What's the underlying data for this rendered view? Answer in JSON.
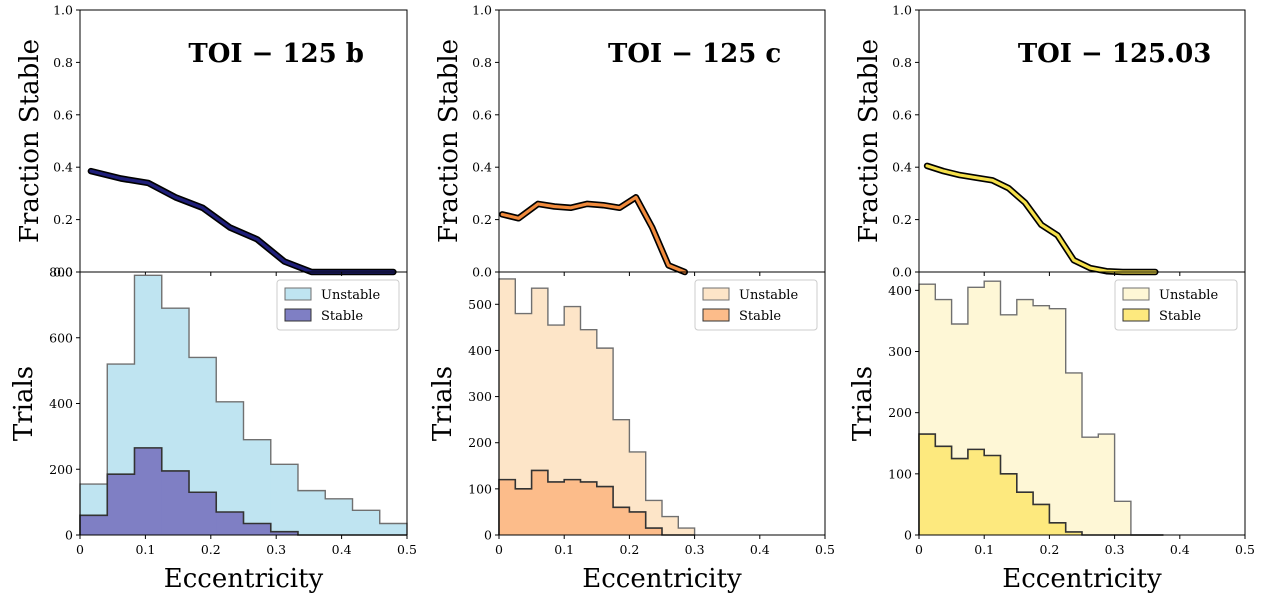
{
  "chart_data": [
    {
      "type": "line",
      "title": "TOI − 125 b",
      "ylabel": "Fraction Stable",
      "ylim": [
        0.0,
        1.0
      ],
      "xlim": [
        0.0,
        0.5
      ],
      "yticks": [
        "0.0",
        "0.2",
        "0.4",
        "0.6",
        "0.8",
        "1.0"
      ],
      "color": "#1f1f7a",
      "x": [
        0.0167,
        0.0625,
        0.1042,
        0.1458,
        0.1875,
        0.2292,
        0.2708,
        0.3125,
        0.3542,
        0.3958,
        0.4375,
        0.4792
      ],
      "y": [
        0.385,
        0.357,
        0.34,
        0.285,
        0.245,
        0.17,
        0.125,
        0.04,
        0.0,
        0.0,
        0.0,
        0.0
      ]
    },
    {
      "type": "histogram",
      "ylabel": "Trials",
      "xlabel": "Eccentricity",
      "ylim": [
        0,
        800
      ],
      "xlim": [
        0.0,
        0.5
      ],
      "xticks": [
        "0",
        "0.1",
        "0.2",
        "0.3",
        "0.4",
        "0.5"
      ],
      "yticks": [
        "0",
        "200",
        "400",
        "600",
        "800"
      ],
      "legend": {
        "position": "top-right",
        "entries": [
          "Unstable",
          "Stable"
        ]
      },
      "bin_edges": [
        0.0,
        0.0417,
        0.0833,
        0.125,
        0.1667,
        0.2083,
        0.25,
        0.2917,
        0.3333,
        0.375,
        0.4167,
        0.4583,
        0.5
      ],
      "series": [
        {
          "name": "Unstable",
          "color": "#bfe4f1",
          "values": [
            155,
            520,
            790,
            690,
            540,
            405,
            290,
            215,
            135,
            110,
            75,
            35
          ]
        },
        {
          "name": "Stable",
          "color": "#7f7fc4",
          "values": [
            60,
            185,
            265,
            195,
            130,
            70,
            35,
            10,
            0,
            0,
            0,
            0
          ]
        }
      ]
    },
    {
      "type": "line",
      "title": "TOI − 125 c",
      "ylabel": "Fraction Stable",
      "ylim": [
        0.0,
        1.0
      ],
      "xlim": [
        0.0,
        0.5
      ],
      "yticks": [
        "0.0",
        "0.2",
        "0.4",
        "0.6",
        "0.8",
        "1.0"
      ],
      "color": "#f08a3c",
      "x": [
        0.005,
        0.03,
        0.06,
        0.085,
        0.11,
        0.135,
        0.16,
        0.185,
        0.21,
        0.235,
        0.26,
        0.285
      ],
      "y": [
        0.22,
        0.205,
        0.26,
        0.25,
        0.245,
        0.26,
        0.255,
        0.245,
        0.285,
        0.17,
        0.025,
        0.0
      ]
    },
    {
      "type": "histogram",
      "ylabel": "Trials",
      "xlabel": "Eccentricity",
      "ylim": [
        0,
        570
      ],
      "xlim": [
        0.0,
        0.5
      ],
      "xticks": [
        "0",
        "0.1",
        "0.2",
        "0.3",
        "0.4",
        "0.5"
      ],
      "yticks": [
        "0",
        "100",
        "200",
        "300",
        "400",
        "500"
      ],
      "legend": {
        "position": "top-right",
        "entries": [
          "Unstable",
          "Stable"
        ]
      },
      "bin_edges": [
        0.0,
        0.025,
        0.05,
        0.075,
        0.1,
        0.125,
        0.15,
        0.175,
        0.2,
        0.225,
        0.25,
        0.275,
        0.3
      ],
      "series": [
        {
          "name": "Unstable",
          "color": "#fde5c8",
          "values": [
            555,
            480,
            535,
            455,
            495,
            445,
            405,
            250,
            180,
            75,
            40,
            15
          ]
        },
        {
          "name": "Stable",
          "color": "#fcbc8a",
          "values": [
            120,
            100,
            140,
            115,
            120,
            115,
            105,
            60,
            50,
            15,
            0,
            0
          ]
        }
      ]
    },
    {
      "type": "line",
      "title": "TOI − 125.03",
      "ylabel": "Fraction Stable",
      "ylim": [
        0.0,
        1.0
      ],
      "xlim": [
        0.0,
        0.5
      ],
      "yticks": [
        "0.0",
        "0.2",
        "0.4",
        "0.6",
        "0.8",
        "1.0"
      ],
      "color": "#f5e04a",
      "x": [
        0.0125,
        0.0375,
        0.0625,
        0.0875,
        0.1125,
        0.1375,
        0.1625,
        0.1875,
        0.2125,
        0.2375,
        0.2625,
        0.2875,
        0.3125,
        0.3375,
        0.3625
      ],
      "y": [
        0.405,
        0.385,
        0.37,
        0.36,
        0.35,
        0.32,
        0.265,
        0.18,
        0.14,
        0.045,
        0.015,
        0.003,
        0.0,
        0.0,
        0.0
      ]
    },
    {
      "type": "histogram",
      "ylabel": "Trials",
      "xlabel": "Eccentricity",
      "ylim": [
        0,
        430
      ],
      "xlim": [
        0.0,
        0.5
      ],
      "xticks": [
        "0",
        "0.1",
        "0.2",
        "0.3",
        "0.4",
        "0.5"
      ],
      "yticks": [
        "0",
        "100",
        "200",
        "300",
        "400"
      ],
      "legend": {
        "position": "top-right",
        "entries": [
          "Unstable",
          "Stable"
        ]
      },
      "bin_edges": [
        0.0,
        0.025,
        0.05,
        0.075,
        0.1,
        0.125,
        0.15,
        0.175,
        0.2,
        0.225,
        0.25,
        0.275,
        0.3,
        0.325,
        0.35,
        0.375
      ],
      "series": [
        {
          "name": "Unstable",
          "color": "#fef7d6",
          "values": [
            410,
            385,
            345,
            405,
            415,
            360,
            385,
            375,
            370,
            265,
            160,
            165,
            55,
            0,
            0
          ]
        },
        {
          "name": "Stable",
          "color": "#fde97e",
          "values": [
            165,
            145,
            125,
            140,
            130,
            100,
            70,
            50,
            20,
            5,
            0,
            0,
            0,
            0,
            0
          ]
        }
      ]
    }
  ]
}
